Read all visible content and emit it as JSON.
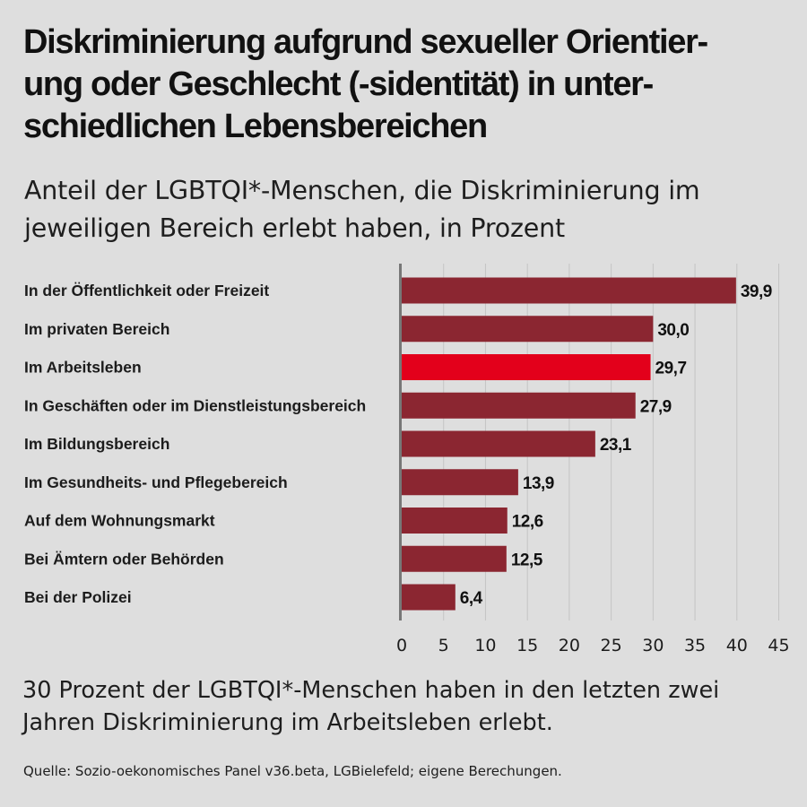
{
  "title": "Diskriminierung aufgrund sexueller Orientier-ung oder Geschlecht (-sidentität) in unter-schiedlichen Lebensbereichen",
  "title_lines": [
    "Diskriminierung aufgrund sexueller Orientier-",
    "ung oder Geschlecht (-sidentität) in unter-",
    "schiedlichen Lebensbereichen"
  ],
  "subtitle_lines": [
    "Anteil der LGBTQI*-Menschen, die Diskriminierung im",
    "jeweiligen Bereich erlebt haben, in Prozent"
  ],
  "note_lines": [
    "30 Prozent der LGBTQI*-Menschen haben in den letzten zwei",
    "Jahren Diskriminierung im Arbeitsleben erlebt."
  ],
  "source": "Quelle: Sozio-oekonomisches Panel v36.beta, LGBielefeld; eigene Berechungen.",
  "colors": {
    "background": "#dedede",
    "bar": "#8b2631",
    "highlight": "#e3001b",
    "gridline": "#c4c4c4",
    "axis": "#777777"
  },
  "chart_data": {
    "type": "bar",
    "orientation": "horizontal",
    "categories": [
      "In der Öffentlichkeit oder Freizeit",
      "Im privaten Bereich",
      "Im Arbeitsleben",
      "In Geschäften oder im Dienstleistungsbereich",
      "Im Bildungsbereich",
      "Im Gesundheits- und Pflegebereich",
      "Auf dem Wohnungsmarkt",
      "Bei Ämtern oder Behörden",
      "Bei der Polizei"
    ],
    "values": [
      39.9,
      30.0,
      29.7,
      27.9,
      23.1,
      13.9,
      12.6,
      12.5,
      6.4
    ],
    "value_labels": [
      "39,9",
      "30,0",
      "29,7",
      "27,9",
      "23,1",
      "13,9",
      "12,6",
      "12,5",
      "6,4"
    ],
    "highlight_index": 2,
    "xlim": [
      0,
      45
    ],
    "xticks": [
      0,
      5,
      10,
      15,
      20,
      25,
      30,
      35,
      40,
      45
    ],
    "grid": true,
    "legend": "none"
  }
}
